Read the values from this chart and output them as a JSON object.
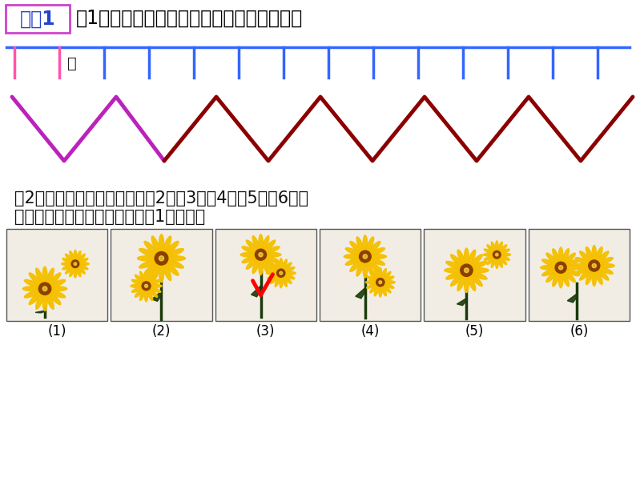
{
  "bg_color": "#ffffff",
  "title_box_color": "#cc44cc",
  "title_text": "练习1",
  "title_text_color": "#2244cc",
  "question1_text": "（1）下列图案可以由什么基本图形平移构成",
  "question1_color": "#000000",
  "question_mark": "？",
  "comb_line_color": "#3366ff",
  "comb_pink_color": "#ff55aa",
  "zigzag_purple_color": "#bb22bb",
  "zigzag_red_color": "#8b0000",
  "question2_line1": "（2）在下面的六幅图案中，（2）（3）（4）（5）（6）中",
  "question2_line2": "的哪个图案可以通过平移图案（1）得到？",
  "question2_color": "#111111",
  "labels": [
    "(1)",
    "(2)",
    "(3)",
    "(4)",
    "(5)",
    "(6)"
  ]
}
